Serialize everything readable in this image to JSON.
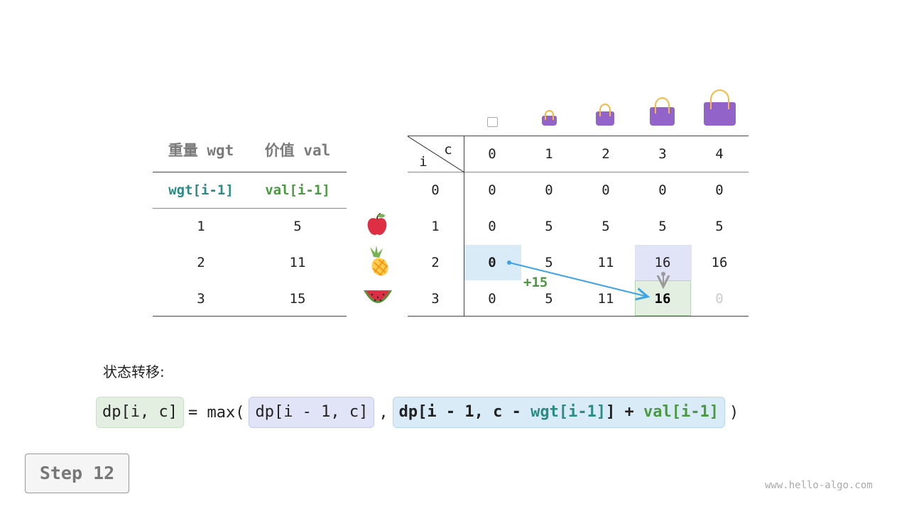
{
  "items_table": {
    "headers": [
      "重量 wgt",
      "价值 val"
    ],
    "subheaders": [
      "wgt[i-1]",
      "val[i-1]"
    ],
    "rows": [
      {
        "wgt": "1",
        "val": "5",
        "fruit": "apple"
      },
      {
        "wgt": "2",
        "val": "11",
        "fruit": "pineapple"
      },
      {
        "wgt": "3",
        "val": "15",
        "fruit": "watermelon"
      }
    ]
  },
  "dp_table": {
    "corner_row": "i",
    "corner_col": "c",
    "capacities": [
      "0",
      "1",
      "2",
      "3",
      "4"
    ],
    "row_labels": [
      "0",
      "1",
      "2",
      "3"
    ],
    "rows": [
      [
        "0",
        "0",
        "0",
        "0",
        "0"
      ],
      [
        "0",
        "5",
        "5",
        "5",
        "5"
      ],
      [
        "0",
        "5",
        "11",
        "16",
        "16"
      ],
      [
        "0",
        "5",
        "11",
        "16",
        "0"
      ]
    ],
    "add_label": "+15"
  },
  "transition": {
    "label": "状态转移:",
    "lhs": "dp[i, c]",
    "eq": "= max(",
    "opt1": "dp[i - 1, c]",
    "comma": ",",
    "opt2_a": "dp[i - 1, c - ",
    "opt2_wgt": "wgt[i-1]",
    "opt2_b": "] + ",
    "opt2_val": "val[i-1]",
    "close": ")"
  },
  "step_label": "Step 12",
  "watermark": "www.hello-algo.com",
  "colors": {
    "teal": "#2b8c86",
    "green": "#4a9a40",
    "blue_cell": "#daebf8",
    "purple_cell": "#e1e4f7",
    "green_cell": "#e3efe1",
    "arrow": "#3ea3e6",
    "bag": "#9264c9"
  }
}
